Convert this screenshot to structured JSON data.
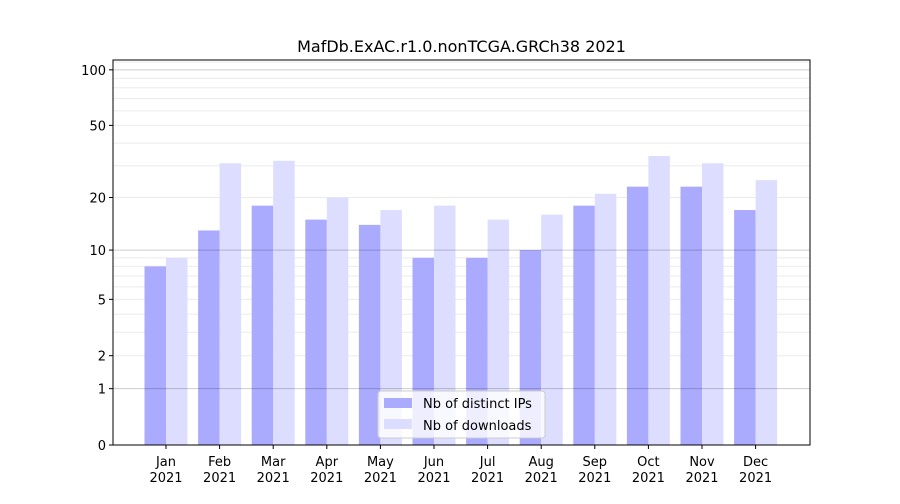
{
  "chart_data": {
    "type": "bar",
    "title": "MafDb.ExAC.r1.0.nonTCGA.GRCh38 2021",
    "xlabel": "",
    "ylabel": "",
    "y_scale": "log(1+y)",
    "ylim": [
      0,
      113
    ],
    "yticks": [
      0,
      1,
      2,
      5,
      10,
      20,
      50,
      100
    ],
    "grid": true,
    "legend_position": "bottom-center",
    "categories": [
      "Jan\n2021",
      "Feb\n2021",
      "Mar\n2021",
      "Apr\n2021",
      "May\n2021",
      "Jun\n2021",
      "Jul\n2021",
      "Aug\n2021",
      "Sep\n2021",
      "Oct\n2021",
      "Nov\n2021",
      "Dec\n2021"
    ],
    "series": [
      {
        "name": "Nb of distinct IPs",
        "color": "#aaaaff",
        "values": [
          8,
          13,
          18,
          15,
          14,
          9,
          9,
          10,
          18,
          23,
          23,
          17
        ]
      },
      {
        "name": "Nb of downloads",
        "color": "#ddddff",
        "values": [
          9,
          31,
          32,
          20,
          17,
          18,
          15,
          16,
          21,
          34,
          31,
          25
        ]
      }
    ]
  }
}
